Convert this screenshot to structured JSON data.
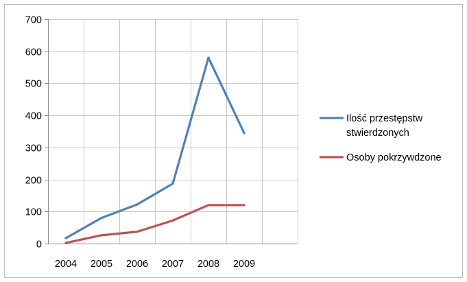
{
  "chart_data": {
    "type": "line",
    "categories": [
      "2004",
      "2005",
      "2006",
      "2007",
      "2008",
      "2009"
    ],
    "ylim": [
      0,
      700
    ],
    "yticks": [
      0,
      100,
      200,
      300,
      400,
      500,
      600,
      700
    ],
    "grid": true,
    "legend_position": "right",
    "series": [
      {
        "name_lines": [
          "Ilość przestępstw",
          "stwierdzonych"
        ],
        "color": "#4f81bd",
        "values": [
          17,
          80,
          122,
          187,
          580,
          345
        ]
      },
      {
        "name_lines": [
          "Osoby pokrzywdzone"
        ],
        "color": "#c0504d",
        "values": [
          2,
          26,
          37,
          72,
          120,
          120
        ]
      }
    ]
  }
}
